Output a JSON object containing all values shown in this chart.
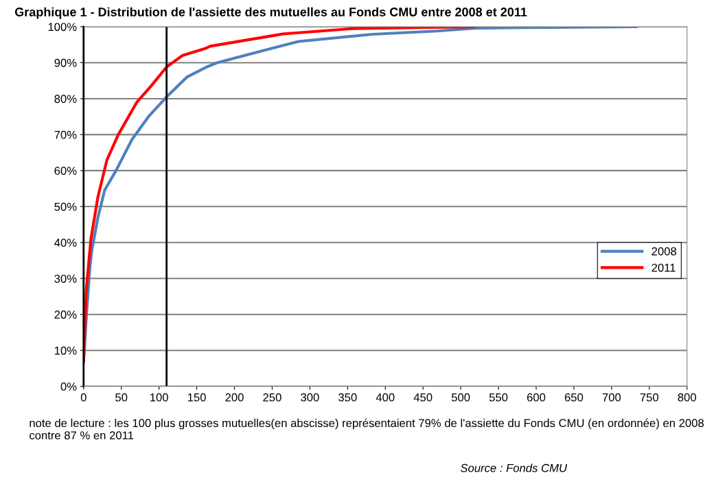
{
  "chart_data": {
    "type": "line",
    "title": "Graphique 1 - Distribution de l'assiette des mutuelles au Fonds CMU entre 2008 et 2011",
    "series": [
      {
        "name": "2008",
        "color": "#4f81bd",
        "x": [
          0,
          3.6,
          8.2,
          11,
          19,
          28,
          43,
          64,
          86,
          110,
          137,
          162,
          177,
          253,
          285,
          383,
          469,
          518,
          600,
          733
        ],
        "values": [
          7,
          19.4,
          32.8,
          38,
          47,
          54.6,
          60,
          68.6,
          75,
          80.5,
          86,
          88.7,
          90,
          94.2,
          95.9,
          97.9,
          98.8,
          99.6,
          99.8,
          100
        ]
      },
      {
        "name": "2011",
        "color": "#ff0000",
        "x": [
          0,
          3.6,
          9.7,
          19,
          31,
          46,
          70.5,
          89,
          110,
          131,
          162,
          168,
          253,
          264,
          358,
          518
        ],
        "values": [
          7.2,
          27,
          41,
          52.7,
          63,
          70,
          79,
          83.4,
          88.8,
          92,
          94,
          94.6,
          97.6,
          98,
          99.5,
          100
        ]
      }
    ],
    "xlim": [
      0,
      800
    ],
    "xticks": [
      0,
      50,
      100,
      150,
      200,
      250,
      300,
      350,
      400,
      450,
      500,
      550,
      600,
      650,
      700,
      750,
      800
    ],
    "ylim": [
      0,
      100
    ],
    "yticks": [
      {
        "value": 0,
        "label": "0%"
      },
      {
        "value": 10,
        "label": "10%"
      },
      {
        "value": 20,
        "label": "20%"
      },
      {
        "value": 30,
        "label": "30%"
      },
      {
        "value": 40,
        "label": "40%"
      },
      {
        "value": 50,
        "label": "50%"
      },
      {
        "value": 60,
        "label": "60%"
      },
      {
        "value": 70,
        "label": "70%"
      },
      {
        "value": 80,
        "label": "80%"
      },
      {
        "value": 90,
        "label": "90%"
      },
      {
        "value": 100,
        "label": "100%"
      }
    ],
    "ref_lines": [
      {
        "axis": "x",
        "value": 110,
        "color": "#000000"
      }
    ],
    "grid": "y",
    "legend": "right",
    "marker": "none",
    "line_style": "solid",
    "annotations": [
      "note de lecture : les 100 plus grosses mutuelles(en abscisse) représentaient 79% de l'assiette du Fonds CMU (en ordonnée) en 2008 contre 87 % en 2011",
      "Source : Fonds CMU"
    ]
  }
}
